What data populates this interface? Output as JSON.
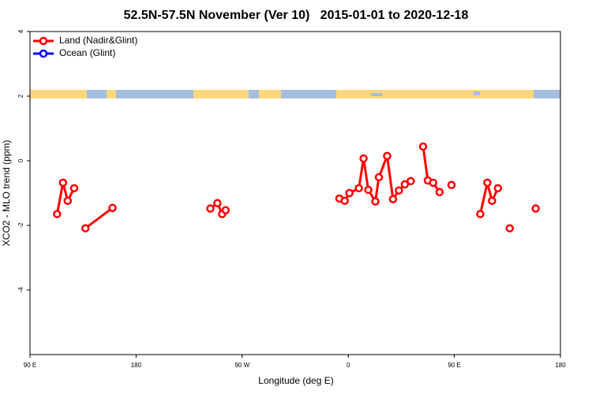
{
  "chart_data": {
    "type": "line",
    "title": "52.5N-57.5N November (Ver 10)   2015-01-01 to 2020-12-18",
    "x_label": "Longitude (deg E)",
    "y_label": "XCO2 - MLO trend (ppm)",
    "x": [
      113,
      118,
      122,
      127.5,
      null,
      137,
      160,
      null,
      243,
      249,
      253,
      256,
      null,
      352.5,
      357,
      361,
      369,
      373,
      377,
      383,
      386,
      393,
      398,
      403,
      408,
      413,
      null,
      423.5,
      427.5,
      432,
      437.5,
      null,
      447.6,
      null,
      472,
      478,
      482,
      487,
      null,
      497,
      null,
      519
    ],
    "series": [
      {
        "name": "Land (Nadir&Glint)",
        "color": "#ff0000",
        "values": [
          -1.65,
          -0.68,
          -1.24,
          -0.85,
          null,
          -2.09,
          -1.46,
          null,
          -1.48,
          -1.31,
          -1.65,
          -1.53,
          null,
          -1.17,
          -1.24,
          -1.0,
          -0.85,
          0.07,
          -0.9,
          -1.26,
          -0.51,
          0.15,
          -1.19,
          -0.92,
          -0.73,
          -0.63,
          null,
          0.44,
          -0.61,
          -0.68,
          -0.97,
          null,
          -0.75,
          null,
          -1.65,
          -0.68,
          -1.24,
          -0.85,
          null,
          -2.09,
          null,
          -1.48
        ]
      },
      {
        "name": "Ocean (Glint)",
        "color": "#0000ff",
        "values": [
          null,
          null,
          null,
          null,
          null,
          null,
          null,
          null,
          null,
          null,
          null,
          null,
          null,
          null,
          null,
          null,
          null,
          null,
          null,
          null,
          null,
          null,
          null,
          null,
          null,
          null,
          null,
          null,
          null,
          null,
          null,
          null,
          null,
          null,
          null,
          null,
          null,
          null,
          null,
          null,
          null,
          null
        ]
      }
    ],
    "xlim": [
      90,
      540
    ],
    "xticks": [
      {
        "value": 90,
        "label": "90 E"
      },
      180,
      {
        "value": 270,
        "label": "90 W"
      },
      {
        "value": 360,
        "label": "0"
      },
      {
        "value": 450,
        "label": "90 E"
      },
      {
        "value": 540,
        "label": "180"
      }
    ],
    "ylim": [
      -6,
      4
    ],
    "yticks": [
      4,
      2,
      0,
      -2,
      -4
    ],
    "legend": "top-left"
  }
}
